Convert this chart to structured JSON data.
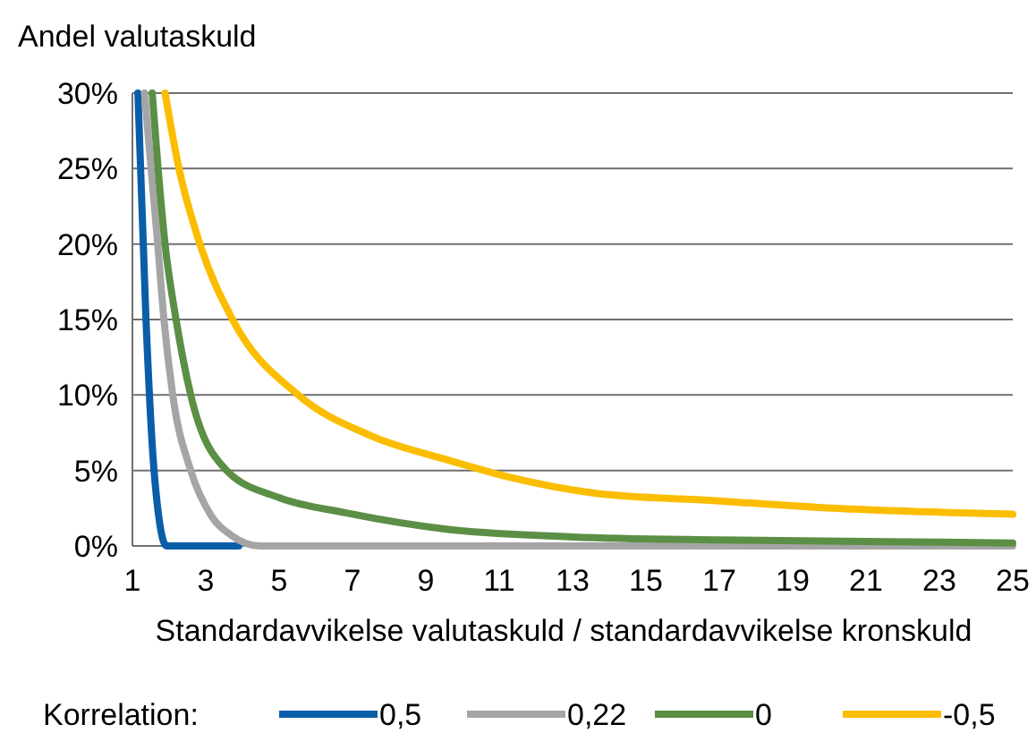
{
  "chart_data": {
    "type": "line",
    "ylabel": "Andel valutaskuld",
    "xlabel": "Standardavvikelse valutaskuld / standardavvikelse kronskuld",
    "legend_title": "Korrelation:",
    "legend": "bottom",
    "grid": "y",
    "marker": "none",
    "line_style": "solid",
    "xlim": [
      1,
      25
    ],
    "xticks": [
      1,
      3,
      5,
      7,
      9,
      11,
      13,
      15,
      17,
      19,
      21,
      23,
      25
    ],
    "ylim": [
      0,
      30
    ],
    "yticks": [
      {
        "value": 0,
        "label": "0%"
      },
      {
        "value": 5,
        "label": "5%"
      },
      {
        "value": 10,
        "label": "10%"
      },
      {
        "value": 15,
        "label": "15%"
      },
      {
        "value": 20,
        "label": "20%"
      },
      {
        "value": 25,
        "label": "25%"
      },
      {
        "value": 30,
        "label": "30%"
      }
    ],
    "series": [
      {
        "name": "0,5",
        "color": "#0a5ea8",
        "x": [
          1.15,
          1.37,
          1.59,
          1.93,
          3.9
        ],
        "values": [
          30,
          15,
          5,
          0,
          0
        ]
      },
      {
        "name": "0,22",
        "color": "#a5a5a5",
        "x": [
          1.33,
          1.69,
          1.86,
          2.1,
          2.59,
          3.15,
          3.7,
          4.46,
          25
        ],
        "values": [
          30,
          20,
          15,
          10,
          5,
          2,
          0.7,
          0,
          0
        ]
      },
      {
        "name": "0",
        "color": "#5b8f45",
        "x": [
          1.54,
          1.7,
          1.89,
          2.19,
          2.59,
          3.57,
          5,
          6.8,
          9.6,
          13,
          17,
          21,
          25
        ],
        "values": [
          30,
          25,
          20,
          15,
          10,
          5,
          3.2,
          2.2,
          1.1,
          0.6,
          0.4,
          0.3,
          0.2
        ]
      },
      {
        "name": "-0,5",
        "color": "#fbbd00",
        "x": [
          1.89,
          2.27,
          2.84,
          3.73,
          5.52,
          7.5,
          9.59,
          11.2,
          13.6,
          16.9,
          20.1,
          25
        ],
        "values": [
          30,
          25,
          20,
          15,
          10,
          7.3,
          5.7,
          4.6,
          3.5,
          3.0,
          2.5,
          2.1
        ]
      }
    ]
  }
}
